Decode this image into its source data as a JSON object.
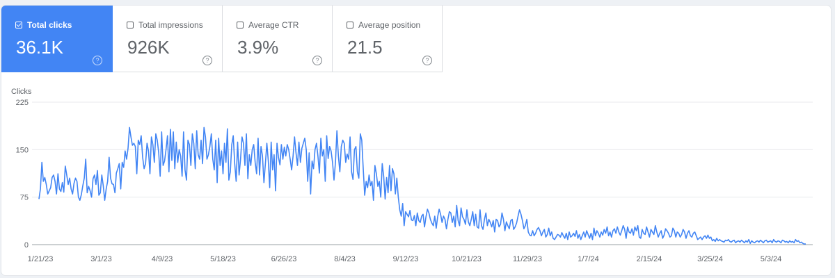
{
  "metrics": [
    {
      "label": "Total clicks",
      "value": "36.1K",
      "checked": true,
      "help": "?"
    },
    {
      "label": "Total impressions",
      "value": "926K",
      "checked": false,
      "help": "?"
    },
    {
      "label": "Average CTR",
      "value": "3.9%",
      "checked": false,
      "help": "?"
    },
    {
      "label": "Average position",
      "value": "21.5",
      "checked": false,
      "help": "?"
    }
  ],
  "colors": {
    "active_card": "#4285f4",
    "line": "#4285f4",
    "grid": "#e8eaed"
  },
  "chart_data": {
    "type": "line",
    "ylabel": "Clicks",
    "ylim": [
      0,
      225
    ],
    "y_ticks": [
      "0",
      "75",
      "150",
      "225"
    ],
    "x_ticks": [
      "1/21/23",
      "3/1/23",
      "4/9/23",
      "5/18/23",
      "6/26/23",
      "8/4/23",
      "9/12/23",
      "10/21/23",
      "11/29/23",
      "1/7/24",
      "2/15/24",
      "3/25/24",
      "5/3/24"
    ],
    "x_start": "1/21/23",
    "x_end": "5/21/24",
    "grid": true,
    "series": [
      {
        "values": [
          72,
          88,
          130,
          100,
          106,
          95,
          80,
          85,
          90,
          106,
          110,
          100,
          80,
          112,
          88,
          84,
          98,
          83,
          124,
          110,
          95,
          105,
          88,
          80,
          97,
          105,
          100,
          75,
          70,
          79,
          93,
          105,
          135,
          82,
          92,
          85,
          75,
          104,
          110,
          95,
          117,
          78,
          82,
          110,
          93,
          70,
          88,
          100,
          138,
          105,
          96,
          95,
          82,
          113,
          120,
          128,
          88,
          130,
          122,
          148,
          135,
          152,
          185,
          170,
          157,
          160,
          155,
          112,
          165,
          158,
          172,
          138,
          120,
          128,
          160,
          148,
          112,
          170,
          158,
          130,
          175,
          165,
          145,
          108,
          178,
          125,
          132,
          150,
          172,
          115,
          182,
          133,
          178,
          120,
          162,
          130,
          150,
          140,
          108,
          178,
          118,
          102,
          165,
          158,
          125,
          175,
          160,
          120,
          180,
          142,
          135,
          165,
          128,
          185,
          170,
          135,
          142,
          155,
          175,
          135,
          118,
          165,
          98,
          168,
          125,
          148,
          112,
          160,
          130,
          183,
          102,
          115,
          158,
          172,
          128,
          100,
          162,
          110,
          135,
          170,
          160,
          125,
          175,
          104,
          142,
          125,
          150,
          158,
          130,
          112,
          168,
          110,
          155,
          140,
          98,
          128,
          160,
          132,
          90,
          162,
          118,
          142,
          85,
          160,
          138,
          126,
          158,
          135,
          154,
          140,
          158,
          150,
          135,
          118,
          140,
          170,
          145,
          125,
          162,
          130,
          152,
          160,
          168,
          150,
          100,
          145,
          80,
          132,
          120,
          150,
          160,
          140,
          113,
          168,
          140,
          150,
          100,
          172,
          136,
          155,
          148,
          130,
          102,
          130,
          180,
          140,
          115,
          155,
          165,
          160,
          130,
          143,
          135,
          170,
          115,
          103,
          150,
          155,
          115,
          105,
          175,
          165,
          120,
          78,
          100,
          90,
          110,
          93,
          100,
          70,
          125,
          112,
          92,
          100,
          75,
          128,
          108,
          72,
          106,
          82,
          125,
          85,
          120,
          112,
          80,
          105,
          75,
          55,
          45,
          65,
          30,
          52,
          48,
          44,
          54,
          39,
          38,
          46,
          30,
          50,
          38,
          35,
          45,
          48,
          28,
          44,
          56,
          50,
          40,
          34,
          30,
          45,
          26,
          44,
          56,
          48,
          35,
          45,
          40,
          25,
          40,
          52,
          50,
          35,
          45,
          28,
          62,
          38,
          30,
          58,
          44,
          40,
          32,
          55,
          36,
          30,
          40,
          52,
          30,
          48,
          28,
          26,
          55,
          30,
          24,
          40,
          50,
          30,
          40,
          35,
          28,
          38,
          20,
          40,
          38,
          28,
          32,
          50,
          40,
          22,
          36,
          30,
          25,
          38,
          40,
          24,
          28,
          34,
          45,
          55,
          48,
          38,
          25,
          30,
          40,
          20,
          15,
          14,
          22,
          14,
          18,
          24,
          27,
          22,
          14,
          20,
          24,
          12,
          16,
          26,
          14,
          20,
          10,
          8,
          12,
          16,
          15,
          12,
          19,
          14,
          10,
          18,
          8,
          20,
          12,
          14,
          18,
          13,
          22,
          10,
          16,
          8,
          14,
          20,
          12,
          22,
          16,
          10,
          18,
          8,
          26,
          14,
          22,
          18,
          12,
          20,
          15,
          24,
          18,
          28,
          14,
          20,
          12,
          22,
          25,
          18,
          28,
          20,
          15,
          22,
          30,
          24,
          10,
          28,
          20,
          18,
          25,
          15,
          28,
          22,
          30,
          12,
          10,
          24,
          18,
          16,
          28,
          20,
          12,
          24,
          20,
          16,
          30,
          20,
          12,
          18,
          22,
          10,
          15,
          25,
          22,
          18,
          12,
          14,
          26,
          22,
          12,
          20,
          18,
          12,
          16,
          24,
          20,
          10,
          18,
          22,
          14,
          12,
          18,
          20,
          14,
          8,
          10,
          12,
          8,
          12,
          14,
          10,
          15,
          10,
          12,
          6,
          8,
          5,
          10,
          6,
          8,
          6,
          5,
          4,
          7,
          6,
          8,
          5,
          4,
          6,
          7,
          3,
          5,
          6,
          4,
          7,
          5,
          3,
          6,
          4,
          8,
          2,
          6,
          4,
          3,
          5,
          6,
          4,
          7,
          5,
          3,
          6,
          7,
          4,
          5,
          6,
          3,
          8,
          5,
          4,
          6,
          5,
          3,
          7,
          6,
          4,
          5,
          3,
          6,
          4,
          5,
          3,
          8,
          5,
          6,
          3,
          4,
          2,
          1,
          1
        ]
      }
    ]
  }
}
